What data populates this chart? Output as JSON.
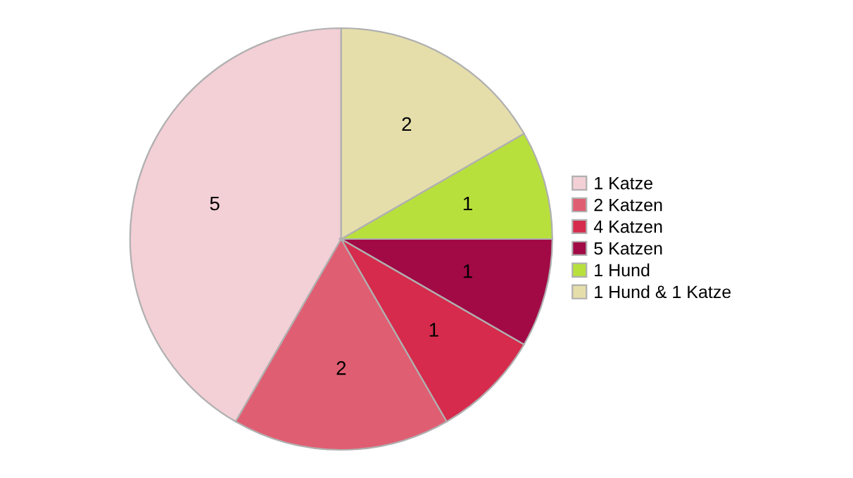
{
  "chart_data": {
    "type": "pie",
    "categories": [
      "1 Katze",
      "2 Katzen",
      "4 Katzen",
      "5 Katzen",
      "1 Hund",
      "1 Hund & 1 Katze"
    ],
    "values": [
      5,
      2,
      1,
      1,
      1,
      2
    ],
    "colors": [
      "#f3cfd6",
      "#e05e72",
      "#d62b4c",
      "#a10a45",
      "#b8e03c",
      "#e6deaa"
    ],
    "data_labels": true,
    "legend": "right"
  }
}
